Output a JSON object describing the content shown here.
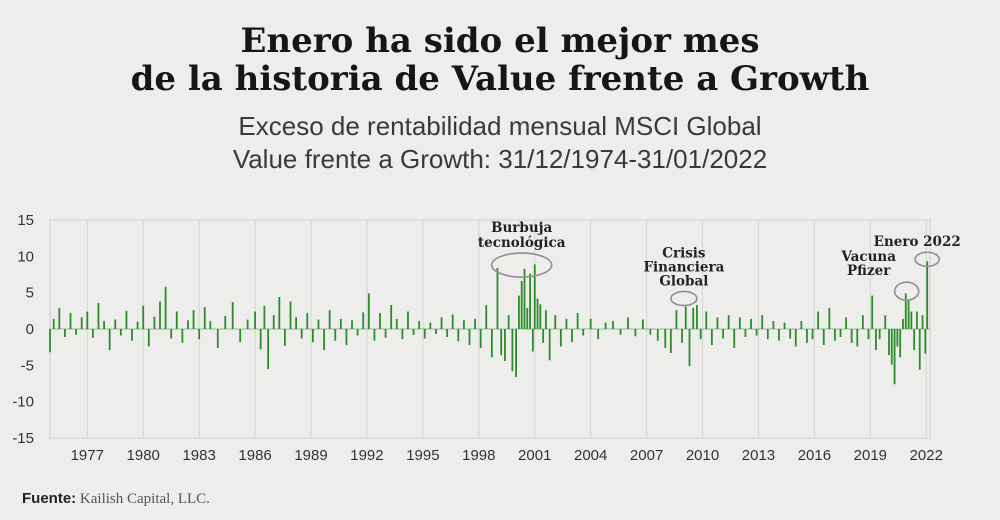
{
  "header": {
    "title_line1": "Enero ha sido el mejor mes",
    "title_line2": "de la historia de Value frente a Growth",
    "subtitle_line1": "Exceso de rentabilidad mensual MSCI Global",
    "subtitle_line2": "Value frente a Growth: 31/12/1974-31/01/2022"
  },
  "footer": {
    "source_label": "Fuente:",
    "source_text": "Kailish Capital, LLC."
  },
  "chart_data": {
    "type": "bar",
    "title": "",
    "xlabel": "",
    "ylabel": "",
    "ylim": [
      -15,
      15
    ],
    "xlim": [
      1975,
      2022.2
    ],
    "yticks": [
      15,
      10,
      5,
      0,
      -5,
      -10,
      -15
    ],
    "xticks": [
      "1977",
      "1980",
      "1983",
      "1986",
      "1989",
      "1992",
      "1995",
      "1998",
      "2001",
      "2004",
      "2007",
      "2010",
      "2013",
      "2016",
      "2019",
      "2022"
    ],
    "grid": "vertical",
    "bar_color": "#2e8b2a",
    "highlight_color": "#8f8f8f",
    "series": [
      {
        "values": [
          [
            1975.0,
            -3.2
          ],
          [
            1975.2,
            1.4
          ],
          [
            1975.5,
            2.9
          ],
          [
            1975.8,
            -1.1
          ],
          [
            1976.1,
            2.2
          ],
          [
            1976.4,
            -0.8
          ],
          [
            1976.7,
            1.6
          ],
          [
            1977.0,
            2.4
          ],
          [
            1977.3,
            -1.2
          ],
          [
            1977.6,
            3.6
          ],
          [
            1977.9,
            1.1
          ],
          [
            1978.2,
            -2.9
          ],
          [
            1978.5,
            1.3
          ],
          [
            1978.8,
            -0.9
          ],
          [
            1979.1,
            2.5
          ],
          [
            1979.4,
            -1.6
          ],
          [
            1979.7,
            1.0
          ],
          [
            1980.0,
            3.2
          ],
          [
            1980.3,
            -2.4
          ],
          [
            1980.6,
            1.7
          ],
          [
            1980.9,
            3.8
          ],
          [
            1981.2,
            5.8
          ],
          [
            1981.5,
            -1.3
          ],
          [
            1981.8,
            2.4
          ],
          [
            1982.1,
            -1.9
          ],
          [
            1982.4,
            1.2
          ],
          [
            1982.7,
            2.6
          ],
          [
            1983.0,
            -1.4
          ],
          [
            1983.3,
            3.0
          ],
          [
            1983.6,
            1.1
          ],
          [
            1984.0,
            -2.6
          ],
          [
            1984.4,
            1.8
          ],
          [
            1984.8,
            3.7
          ],
          [
            1985.2,
            -1.8
          ],
          [
            1985.6,
            1.3
          ],
          [
            1986.0,
            2.4
          ],
          [
            1986.3,
            -2.8
          ],
          [
            1986.5,
            3.2
          ],
          [
            1986.7,
            -5.5
          ],
          [
            1987.0,
            1.9
          ],
          [
            1987.3,
            4.4
          ],
          [
            1987.6,
            -2.3
          ],
          [
            1987.9,
            3.8
          ],
          [
            1988.2,
            1.6
          ],
          [
            1988.5,
            -1.3
          ],
          [
            1988.8,
            2.2
          ],
          [
            1989.1,
            -1.8
          ],
          [
            1989.4,
            1.3
          ],
          [
            1989.7,
            -2.9
          ],
          [
            1990.0,
            2.6
          ],
          [
            1990.3,
            -1.6
          ],
          [
            1990.6,
            1.4
          ],
          [
            1990.9,
            -2.2
          ],
          [
            1991.2,
            1.2
          ],
          [
            1991.5,
            -0.9
          ],
          [
            1991.8,
            2.3
          ],
          [
            1992.1,
            4.9
          ],
          [
            1992.4,
            -1.6
          ],
          [
            1992.7,
            2.2
          ],
          [
            1993.0,
            -1.2
          ],
          [
            1993.3,
            3.3
          ],
          [
            1993.6,
            1.4
          ],
          [
            1993.9,
            -1.4
          ],
          [
            1994.2,
            2.4
          ],
          [
            1994.5,
            -0.8
          ],
          [
            1994.8,
            1.1
          ],
          [
            1995.1,
            -1.3
          ],
          [
            1995.4,
            0.9
          ],
          [
            1995.7,
            -0.7
          ],
          [
            1996.0,
            1.6
          ],
          [
            1996.3,
            -1.1
          ],
          [
            1996.6,
            2.0
          ],
          [
            1996.9,
            -1.7
          ],
          [
            1997.2,
            1.2
          ],
          [
            1997.5,
            -2.2
          ],
          [
            1997.8,
            1.4
          ],
          [
            1998.1,
            -2.6
          ],
          [
            1998.4,
            3.3
          ],
          [
            1998.7,
            -3.9
          ],
          [
            1999.0,
            8.4
          ],
          [
            1999.2,
            -3.6
          ],
          [
            1999.4,
            -4.4
          ],
          [
            1999.6,
            1.9
          ],
          [
            1999.8,
            -5.8
          ],
          [
            2000.0,
            -6.6
          ],
          [
            2000.15,
            4.6
          ],
          [
            2000.3,
            6.6
          ],
          [
            2000.45,
            8.3
          ],
          [
            2000.6,
            2.9
          ],
          [
            2000.75,
            7.6
          ],
          [
            2000.9,
            -3.1
          ],
          [
            2001.0,
            8.9
          ],
          [
            2001.15,
            4.2
          ],
          [
            2001.3,
            3.4
          ],
          [
            2001.45,
            -1.9
          ],
          [
            2001.6,
            2.6
          ],
          [
            2001.8,
            -4.3
          ],
          [
            2002.1,
            1.9
          ],
          [
            2002.4,
            -2.4
          ],
          [
            2002.7,
            1.4
          ],
          [
            2003.0,
            -1.8
          ],
          [
            2003.3,
            2.2
          ],
          [
            2003.6,
            -0.9
          ],
          [
            2004.0,
            1.4
          ],
          [
            2004.4,
            -1.4
          ],
          [
            2004.8,
            0.9
          ],
          [
            2005.2,
            1.1
          ],
          [
            2005.6,
            -0.8
          ],
          [
            2006.0,
            1.6
          ],
          [
            2006.4,
            -1.0
          ],
          [
            2006.8,
            1.3
          ],
          [
            2007.2,
            -0.8
          ],
          [
            2007.6,
            -1.6
          ],
          [
            2008.0,
            -2.6
          ],
          [
            2008.3,
            -3.3
          ],
          [
            2008.6,
            2.6
          ],
          [
            2008.9,
            -1.9
          ],
          [
            2009.1,
            3.1
          ],
          [
            2009.3,
            -5.1
          ],
          [
            2009.5,
            2.9
          ],
          [
            2009.7,
            3.3
          ],
          [
            2009.9,
            -1.4
          ],
          [
            2010.2,
            2.4
          ],
          [
            2010.5,
            -2.2
          ],
          [
            2010.8,
            1.6
          ],
          [
            2011.1,
            -1.3
          ],
          [
            2011.4,
            1.9
          ],
          [
            2011.7,
            -2.6
          ],
          [
            2012.0,
            1.6
          ],
          [
            2012.3,
            -1.1
          ],
          [
            2012.6,
            1.4
          ],
          [
            2012.9,
            -0.9
          ],
          [
            2013.2,
            1.9
          ],
          [
            2013.5,
            -1.4
          ],
          [
            2013.8,
            1.1
          ],
          [
            2014.1,
            -1.6
          ],
          [
            2014.4,
            0.9
          ],
          [
            2014.7,
            -1.3
          ],
          [
            2015.0,
            -2.4
          ],
          [
            2015.3,
            1.1
          ],
          [
            2015.6,
            -1.9
          ],
          [
            2015.9,
            -1.4
          ],
          [
            2016.2,
            2.4
          ],
          [
            2016.5,
            -2.2
          ],
          [
            2016.8,
            2.9
          ],
          [
            2017.1,
            -1.6
          ],
          [
            2017.4,
            -1.1
          ],
          [
            2017.7,
            1.6
          ],
          [
            2018.0,
            -1.9
          ],
          [
            2018.3,
            -2.4
          ],
          [
            2018.6,
            1.9
          ],
          [
            2018.9,
            -1.4
          ],
          [
            2019.1,
            4.6
          ],
          [
            2019.3,
            -2.9
          ],
          [
            2019.5,
            -1.4
          ],
          [
            2019.8,
            1.9
          ],
          [
            2020.0,
            -3.6
          ],
          [
            2020.15,
            -4.9
          ],
          [
            2020.3,
            -7.6
          ],
          [
            2020.45,
            -2.4
          ],
          [
            2020.6,
            -3.9
          ],
          [
            2020.75,
            1.4
          ],
          [
            2020.9,
            4.9
          ],
          [
            2021.05,
            3.9
          ],
          [
            2021.2,
            2.4
          ],
          [
            2021.35,
            -2.9
          ],
          [
            2021.5,
            2.4
          ],
          [
            2021.65,
            -5.6
          ],
          [
            2021.8,
            1.9
          ],
          [
            2021.95,
            -3.4
          ],
          [
            2022.05,
            9.3
          ]
        ]
      }
    ],
    "annotations": [
      {
        "label_lines": [
          "Burbuja",
          "tecnológica"
        ],
        "year": 2000.3,
        "value": 8.8
      },
      {
        "label_lines": [
          "Crisis",
          "Financiera",
          "Global"
        ],
        "year": 2009.0,
        "value": 4.2
      },
      {
        "label_lines": [
          "Vacuna",
          "Pfizer"
        ],
        "year": 2020.95,
        "value": 5.2
      },
      {
        "label_lines": [
          "Enero 2022"
        ],
        "year": 2022.05,
        "value": 9.6
      }
    ]
  }
}
